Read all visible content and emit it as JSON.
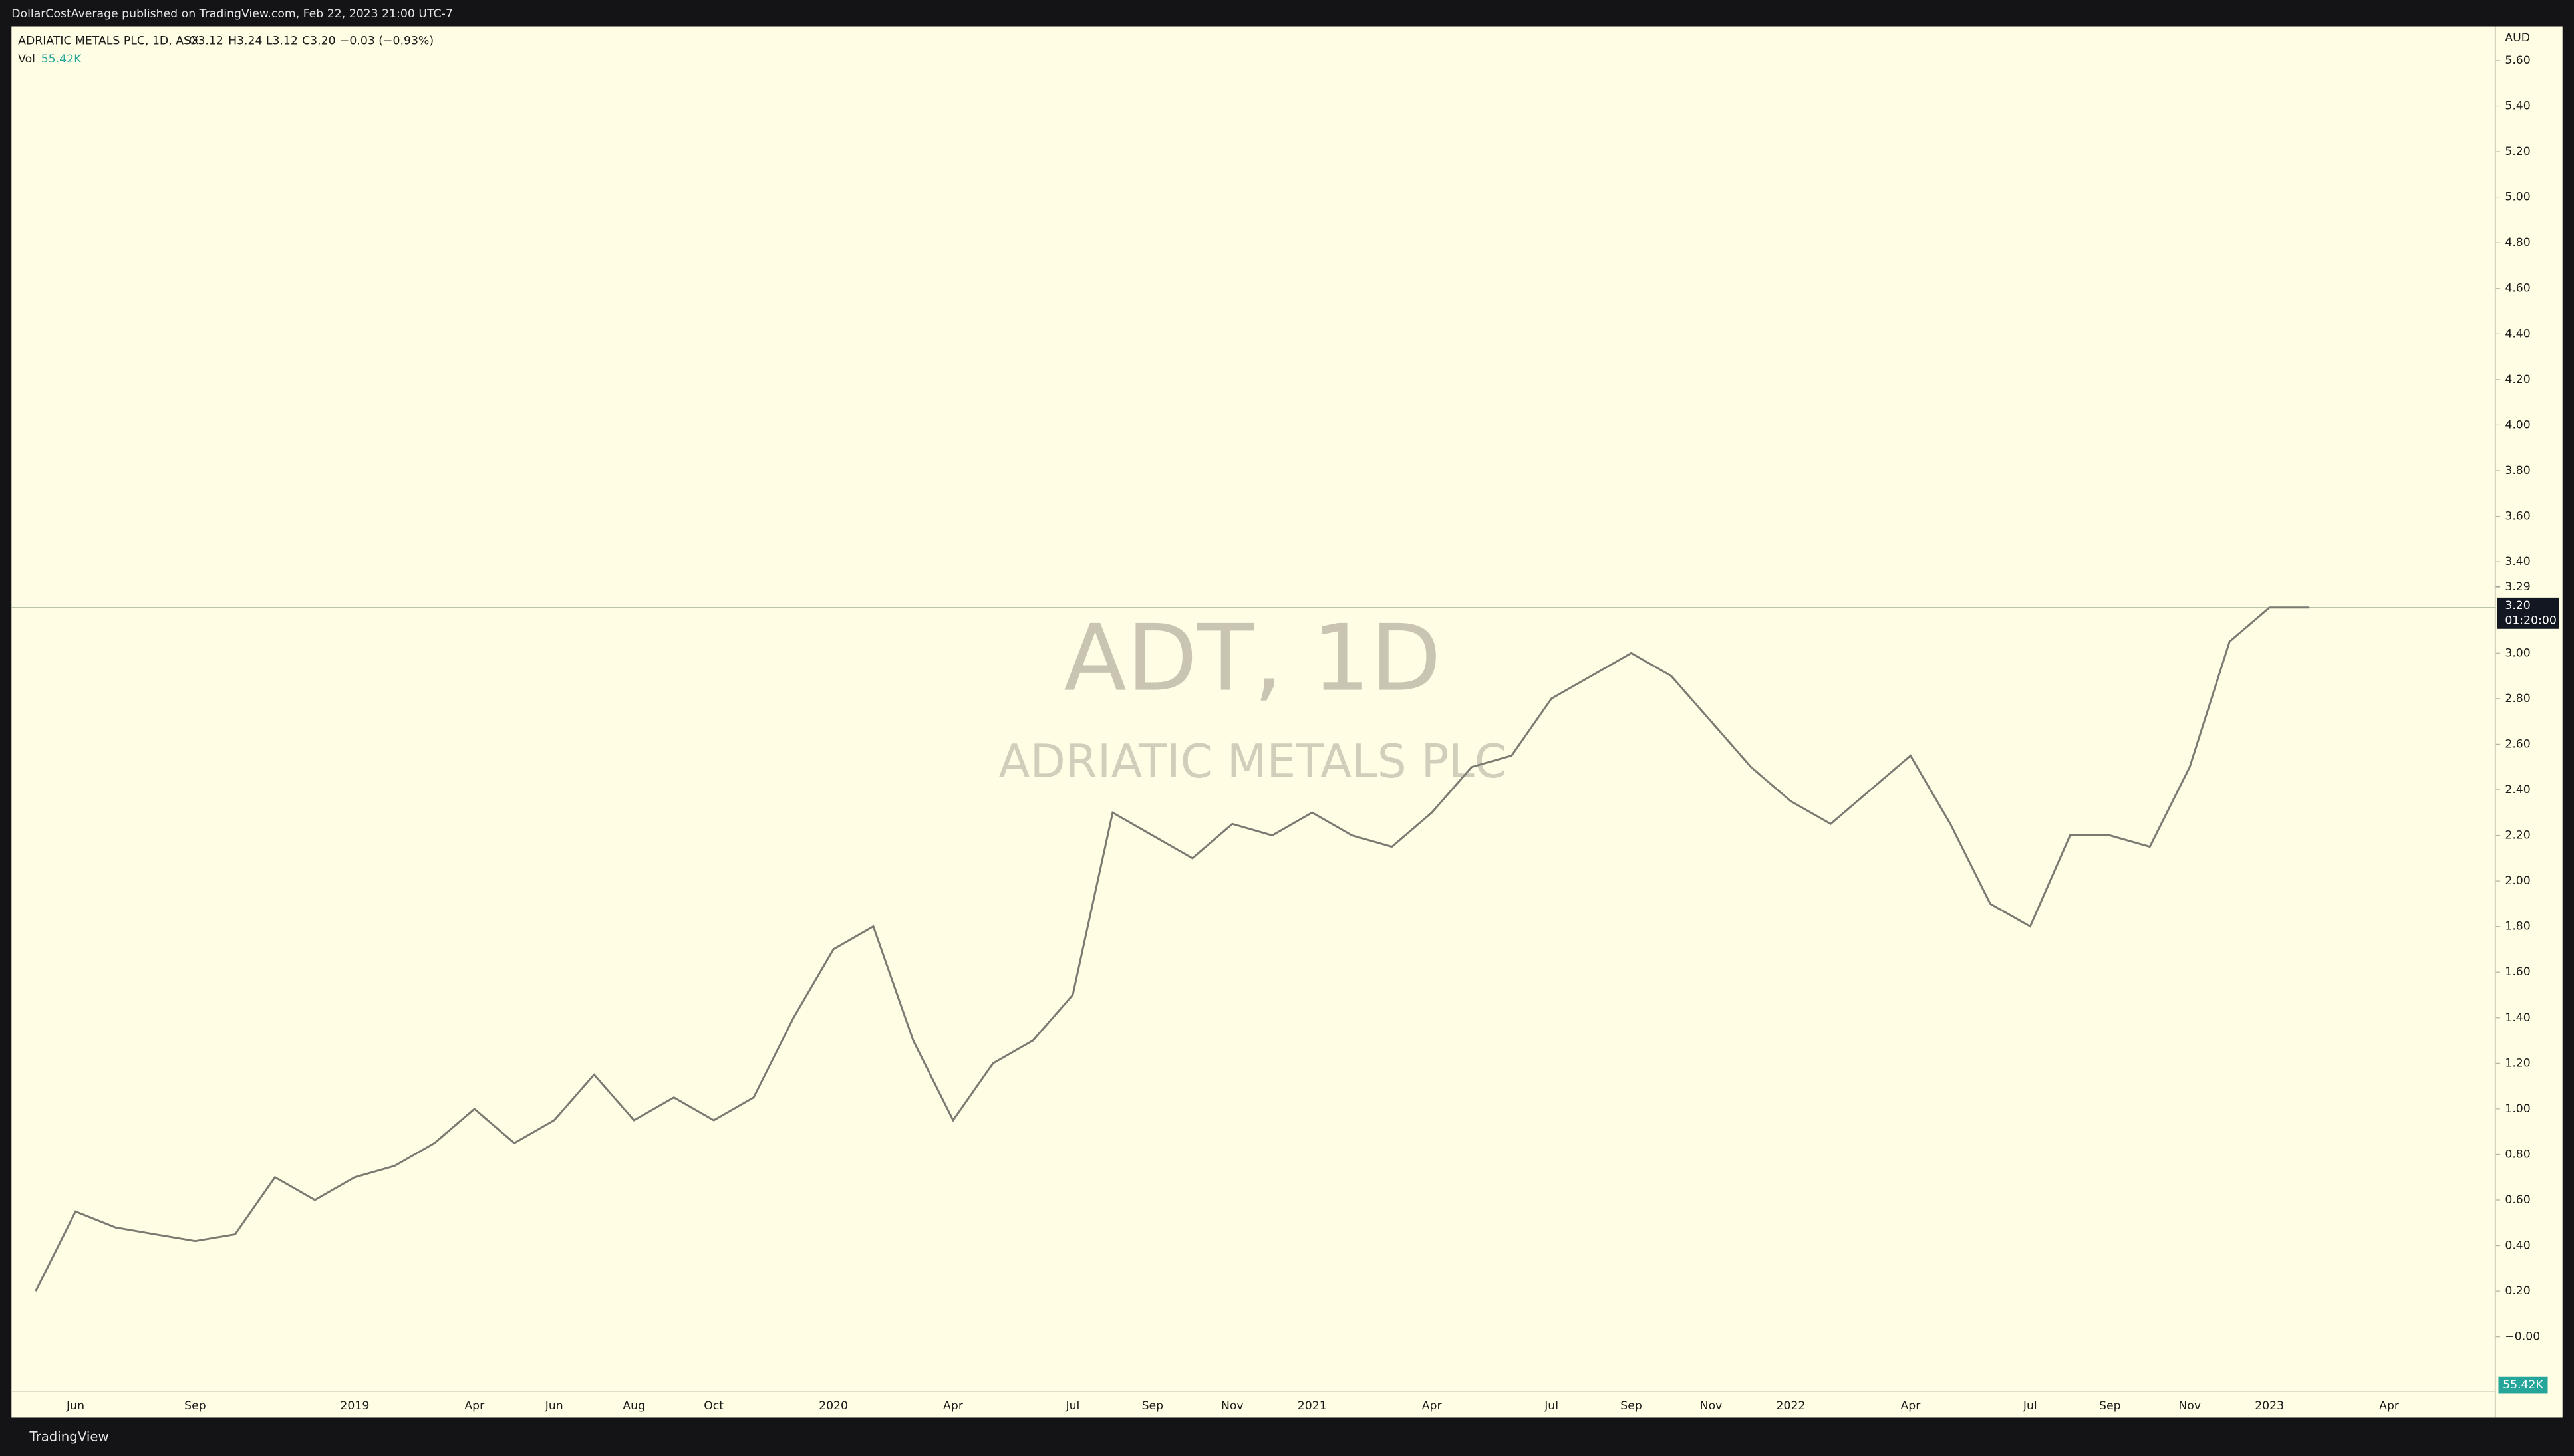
{
  "header": "DollarCostAverage published on TradingView.com, Feb 22, 2023 21:00 UTC-7",
  "footer": "TradingView",
  "chart_data": {
    "type": "line",
    "legend": {
      "symbol": "ADRIATIC METALS PLC, 1D, ASX",
      "open": "O3.12",
      "high": "H3.24",
      "low": "L3.12",
      "close": "C3.20",
      "change": "−0.03 (−0.93%)"
    },
    "volume_label": "Vol",
    "volume_value": "55.42K",
    "watermark": {
      "title": "ADT, 1D",
      "subtitle": "ADRIATIC METALS PLC"
    },
    "currency": "AUD",
    "last_price": {
      "value": 3.2,
      "label": "3.20"
    },
    "countdown": "01:20:00",
    "marker_price": {
      "value": 3.29,
      "label": "3.29"
    },
    "categories": [
      null,
      "Jun",
      null,
      null,
      "Sep",
      null,
      null,
      null,
      "2019",
      null,
      null,
      "Apr",
      null,
      "Jun",
      null,
      "Aug",
      null,
      "Oct",
      null,
      null,
      "2020",
      null,
      null,
      "Apr",
      null,
      null,
      "Jul",
      null,
      "Sep",
      null,
      "Nov",
      null,
      "2021",
      null,
      null,
      "Apr",
      null,
      null,
      "Jul",
      null,
      "Sep",
      null,
      "Nov",
      null,
      "2022",
      null,
      null,
      "Apr",
      null,
      null,
      "Jul",
      null,
      "Sep",
      null,
      "Nov",
      null,
      "2023",
      null,
      null,
      "Apr"
    ],
    "series": [
      {
        "name": "ADT",
        "color": "#7a7a72",
        "values": [
          0.2,
          0.55,
          0.48,
          0.45,
          0.42,
          0.45,
          0.7,
          0.6,
          0.7,
          0.75,
          0.85,
          1.0,
          0.85,
          0.95,
          1.15,
          0.95,
          1.05,
          0.95,
          1.05,
          1.4,
          1.7,
          1.8,
          1.3,
          0.95,
          1.2,
          1.3,
          1.5,
          2.3,
          2.2,
          2.1,
          2.25,
          2.2,
          2.3,
          2.2,
          2.15,
          2.3,
          2.5,
          2.55,
          2.8,
          2.9,
          3.0,
          2.9,
          2.7,
          2.5,
          2.35,
          2.25,
          2.4,
          2.55,
          2.25,
          1.9,
          1.8,
          2.2,
          2.2,
          2.15,
          2.5,
          3.05,
          3.2,
          3.2,
          null,
          null
        ]
      }
    ],
    "ylim": [
      -0.24,
      5.75
    ],
    "yticks": [
      {
        "value": 0,
        "label": "−0.00"
      },
      {
        "value": 0.2,
        "label": "0.20"
      },
      {
        "value": 0.4,
        "label": "0.40"
      },
      {
        "value": 0.6,
        "label": "0.60"
      },
      {
        "value": 0.8,
        "label": "0.80"
      },
      {
        "value": 1,
        "label": "1.00"
      },
      {
        "value": 1.2,
        "label": "1.20"
      },
      {
        "value": 1.4,
        "label": "1.40"
      },
      {
        "value": 1.6,
        "label": "1.60"
      },
      {
        "value": 1.8,
        "label": "1.80"
      },
      {
        "value": 2,
        "label": "2.00"
      },
      {
        "value": 2.2,
        "label": "2.20"
      },
      {
        "value": 2.4,
        "label": "2.40"
      },
      {
        "value": 2.6,
        "label": "2.60"
      },
      {
        "value": 2.8,
        "label": "2.80"
      },
      {
        "value": 3,
        "label": "3.00"
      },
      {
        "value": 3.4,
        "label": "3.40"
      },
      {
        "value": 3.6,
        "label": "3.60"
      },
      {
        "value": 3.8,
        "label": "3.80"
      },
      {
        "value": 4,
        "label": "4.00"
      },
      {
        "value": 4.2,
        "label": "4.20"
      },
      {
        "value": 4.4,
        "label": "4.40"
      },
      {
        "value": 4.6,
        "label": "4.60"
      },
      {
        "value": 4.8,
        "label": "4.80"
      },
      {
        "value": 5,
        "label": "5.00"
      },
      {
        "value": 5.2,
        "label": "5.20"
      },
      {
        "value": 5.4,
        "label": "5.40"
      },
      {
        "value": 5.6,
        "label": "5.60"
      }
    ],
    "grid": false
  }
}
